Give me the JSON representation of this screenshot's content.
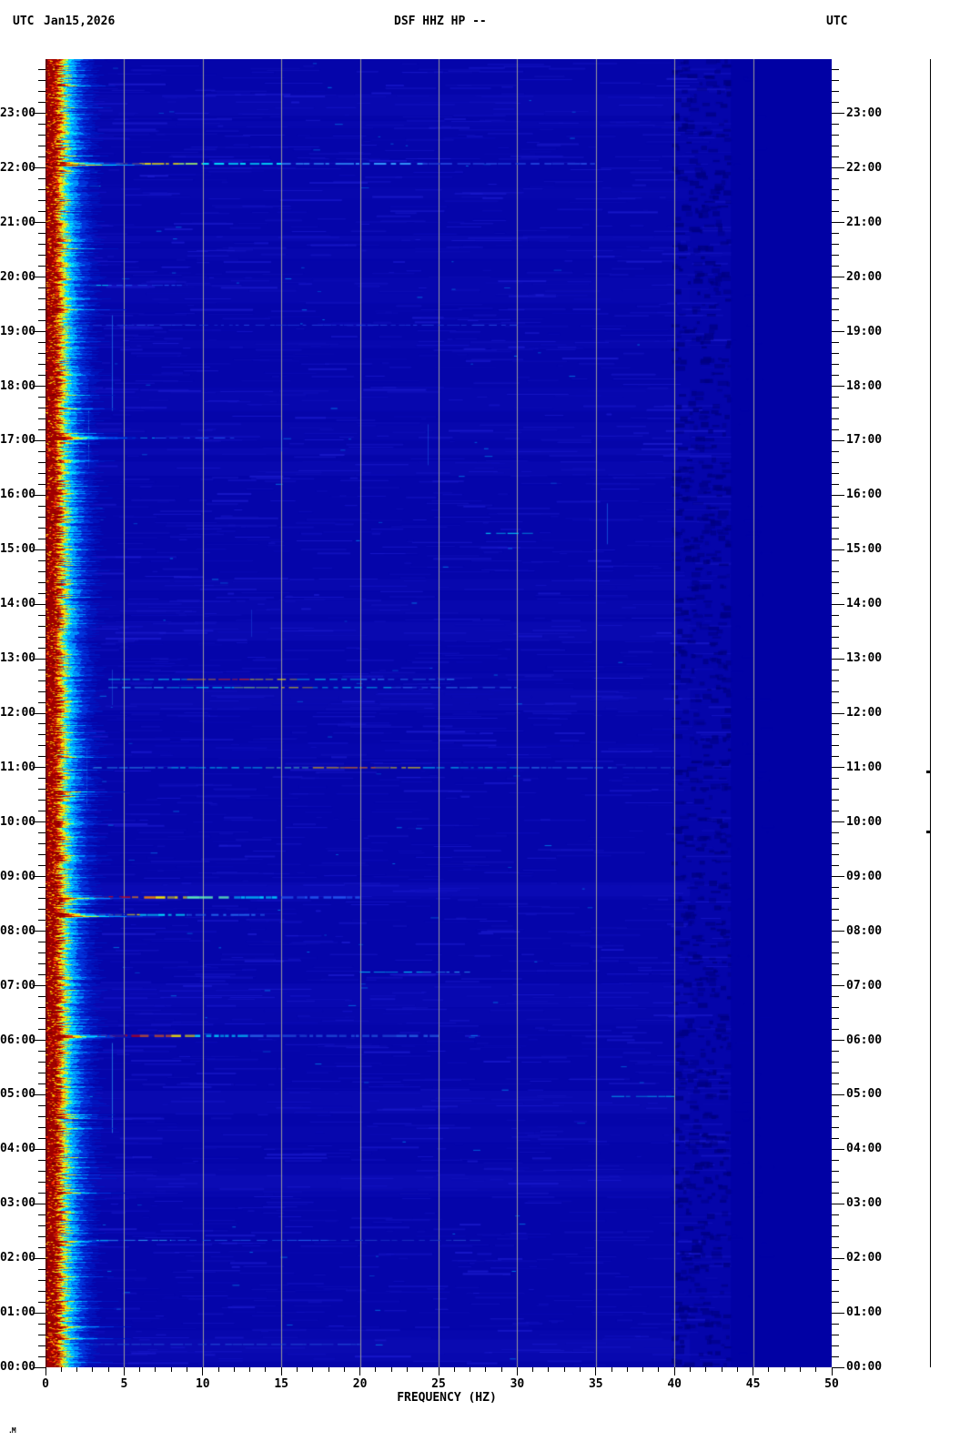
{
  "header": {
    "left_label": "UTC",
    "date": "Jan15,2026",
    "title": "DSF HHZ HP --",
    "right_label": "UTC"
  },
  "corner_mark": ".M",
  "x_axis": {
    "label": "FREQUENCY (HZ)",
    "min_hz": 0,
    "max_hz": 50,
    "major_step_hz": 5,
    "minor_step_hz": 1,
    "major_tick_labels": [
      "0",
      "5",
      "10",
      "15",
      "20",
      "25",
      "30",
      "35",
      "40",
      "45",
      "50"
    ]
  },
  "y_axis": {
    "timezone": "UTC",
    "hours": [
      "00:00",
      "01:00",
      "02:00",
      "03:00",
      "04:00",
      "05:00",
      "06:00",
      "07:00",
      "08:00",
      "09:00",
      "10:00",
      "11:00",
      "12:00",
      "13:00",
      "14:00",
      "15:00",
      "16:00",
      "17:00",
      "18:00",
      "19:00",
      "20:00",
      "21:00",
      "22:00",
      "23:00"
    ],
    "minor_ticks_per_hour": 5,
    "direction": "time increases upward, 00:00 at bottom, 24:00 at top"
  },
  "chart_data": {
    "type": "heatmap",
    "title": "DSF HHZ HP --",
    "subtitle": "24-hour seismic spectrogram, Jan15,2026 UTC",
    "xlabel": "FREQUENCY (HZ)",
    "x_range_hz": [
      0,
      50
    ],
    "y_range_hours": [
      0,
      24
    ],
    "grid": "vertical grey lines every 5 Hz",
    "legend_position": "none",
    "palette": {
      "background": "#0505aa",
      "noise_light": "#1d1dd0",
      "noise_mid": "#1212bc",
      "noise_cyan": "#00aaff",
      "flat_right": "#0101a4",
      "mottle_dark": "#000080",
      "grid": "#9a9a9a",
      "band_peak": "#a00000"
    },
    "left_band": {
      "description": "continuous strong microseism band 0 - ~2.5 Hz for all 24 h: dark red core grading orange-yellow-green-cyan-blue into background",
      "stops": [
        {
          "w": 1.5,
          "color": "#600000"
        },
        {
          "w": 12,
          "color": "#a00000"
        },
        {
          "w": 3,
          "color": "#e83000"
        },
        {
          "w": 4,
          "color": "#ffdd00"
        },
        {
          "w": 3,
          "color": "#a8ff50"
        },
        {
          "w": 5,
          "color": "#00e0ff"
        },
        {
          "w": 7,
          "color": "#0090ff"
        },
        {
          "w": 9,
          "color": "#0040e8"
        },
        {
          "w": 10,
          "color": "#0018c0"
        }
      ],
      "speck_colors": [
        "#ff2a00",
        "#ffcc00",
        "#700000",
        "#ff7700"
      ]
    },
    "events": [
      {
        "time": "22:05",
        "t": 22.08,
        "thickness": 2,
        "band_boost": true,
        "segments": [
          {
            "f0": 0,
            "f1": 2.2,
            "color": "#8b0000"
          },
          {
            "f0": 2.2,
            "f1": 4.5,
            "color": "#d40000"
          },
          {
            "f0": 4.5,
            "f1": 6,
            "color": "#ff8800"
          },
          {
            "f0": 6,
            "f1": 8.5,
            "color": "#ffee00"
          },
          {
            "f0": 8.5,
            "f1": 10,
            "color": "#aaff66"
          },
          {
            "f0": 10,
            "f1": 15,
            "color": "#00e5ff"
          },
          {
            "f0": 15,
            "f1": 24,
            "color": "#3399ff"
          },
          {
            "f0": 24,
            "f1": 35,
            "color": "#2244dd"
          }
        ]
      },
      {
        "time": "21:40",
        "t": 21.67,
        "thickness": 1,
        "segments": [
          {
            "f0": 0,
            "f1": 1.8,
            "color": "#ffee00"
          },
          {
            "f0": 1.8,
            "f1": 3.5,
            "color": "#00e5ff"
          }
        ]
      },
      {
        "time": "19:51",
        "t": 19.85,
        "thickness": 1,
        "segments": [
          {
            "f0": 0,
            "f1": 1.5,
            "color": "#ffee00"
          },
          {
            "f0": 1.5,
            "f1": 4,
            "color": "#00d5ff"
          },
          {
            "f0": 4,
            "f1": 9,
            "color": "#2255ee"
          }
        ]
      },
      {
        "time": "19:07",
        "t": 19.12,
        "thickness": 1,
        "segments": [
          {
            "f0": 0,
            "f1": 1.5,
            "color": "#aaff66"
          },
          {
            "f0": 1.5,
            "f1": 3,
            "color": "#00d5ff"
          },
          {
            "f0": 3,
            "f1": 30,
            "color": "#2244dd"
          }
        ]
      },
      {
        "time": "17:03",
        "t": 17.05,
        "thickness": 1,
        "band_boost": true,
        "segments": [
          {
            "f0": 0,
            "f1": 1.6,
            "color": "#ffcc00"
          },
          {
            "f0": 1.6,
            "f1": 4,
            "color": "#66ffcc"
          },
          {
            "f0": 4,
            "f1": 7,
            "color": "#00bbff"
          },
          {
            "f0": 7,
            "f1": 12,
            "color": "#2255ee"
          }
        ]
      },
      {
        "time": "15:18",
        "t": 15.3,
        "thickness": 1,
        "segments": [
          {
            "f0": 28,
            "f1": 31,
            "color": "#00e5ff"
          }
        ]
      },
      {
        "time": "12:37",
        "t": 12.62,
        "thickness": 1,
        "segments": [
          {
            "f0": 4,
            "f1": 9,
            "color": "#00e5ff"
          },
          {
            "f0": 9,
            "f1": 11,
            "color": "#ffaa00"
          },
          {
            "f0": 11,
            "f1": 13,
            "color": "#ff3300"
          },
          {
            "f0": 13,
            "f1": 16,
            "color": "#ffee00"
          },
          {
            "f0": 16,
            "f1": 20,
            "color": "#00e5ff"
          },
          {
            "f0": 20,
            "f1": 26,
            "color": "#3399ff"
          }
        ]
      },
      {
        "time": "12:28",
        "t": 12.47,
        "thickness": 1,
        "segments": [
          {
            "f0": 4,
            "f1": 8,
            "color": "#33bbff"
          },
          {
            "f0": 8,
            "f1": 12,
            "color": "#00e5ff"
          },
          {
            "f0": 12,
            "f1": 15,
            "color": "#aaff66"
          },
          {
            "f0": 15,
            "f1": 17,
            "color": "#ffee00"
          },
          {
            "f0": 17,
            "f1": 22,
            "color": "#00e5ff"
          },
          {
            "f0": 22,
            "f1": 30,
            "color": "#3377ee"
          }
        ]
      },
      {
        "time": "11:00",
        "t": 11.0,
        "thickness": 1,
        "segments": [
          {
            "f0": 3,
            "f1": 8,
            "color": "#33bbff"
          },
          {
            "f0": 8,
            "f1": 14,
            "color": "#00e5ff"
          },
          {
            "f0": 14,
            "f1": 17,
            "color": "#66ffbb"
          },
          {
            "f0": 17,
            "f1": 19,
            "color": "#ffcc00"
          },
          {
            "f0": 19,
            "f1": 21,
            "color": "#ff8800"
          },
          {
            "f0": 21,
            "f1": 24,
            "color": "#ffee00"
          },
          {
            "f0": 24,
            "f1": 30,
            "color": "#00e5ff"
          },
          {
            "f0": 30,
            "f1": 36,
            "color": "#3399ff"
          },
          {
            "f0": 36,
            "f1": 40,
            "color": "#2255dd"
          }
        ]
      },
      {
        "time": "08:37",
        "t": 8.62,
        "thickness": 2.5,
        "band_boost": true,
        "segments": [
          {
            "f0": 0,
            "f1": 3,
            "color": "#8b0000"
          },
          {
            "f0": 3,
            "f1": 5.5,
            "color": "#e00000"
          },
          {
            "f0": 5.5,
            "f1": 7,
            "color": "#ff8800"
          },
          {
            "f0": 7,
            "f1": 9,
            "color": "#ffee00"
          },
          {
            "f0": 9,
            "f1": 12,
            "color": "#66ffbb"
          },
          {
            "f0": 12,
            "f1": 15,
            "color": "#00ccff"
          },
          {
            "f0": 15,
            "f1": 20,
            "color": "#2255ee"
          }
        ]
      },
      {
        "time": "08:18",
        "t": 8.3,
        "thickness": 2,
        "band_boost": true,
        "segments": [
          {
            "f0": 0,
            "f1": 2,
            "color": "#cc2200"
          },
          {
            "f0": 2,
            "f1": 4,
            "color": "#ff9900"
          },
          {
            "f0": 4,
            "f1": 6,
            "color": "#ffee00"
          },
          {
            "f0": 6,
            "f1": 9,
            "color": "#00e5ff"
          },
          {
            "f0": 9,
            "f1": 14,
            "color": "#2266ee"
          }
        ]
      },
      {
        "time": "07:15",
        "t": 7.25,
        "thickness": 1,
        "segments": [
          {
            "f0": 20,
            "f1": 24,
            "color": "#00ccff"
          },
          {
            "f0": 24,
            "f1": 27,
            "color": "#33aaff"
          }
        ]
      },
      {
        "time": "06:05",
        "t": 6.08,
        "thickness": 2.5,
        "band_boost": true,
        "segments": [
          {
            "f0": 0,
            "f1": 3.5,
            "color": "#8b0000"
          },
          {
            "f0": 3.5,
            "f1": 6,
            "color": "#cc0000"
          },
          {
            "f0": 6,
            "f1": 8,
            "color": "#ff6600"
          },
          {
            "f0": 8,
            "f1": 9.5,
            "color": "#ffee00"
          },
          {
            "f0": 9.5,
            "f1": 13,
            "color": "#00ccff"
          },
          {
            "f0": 13,
            "f1": 25,
            "color": "#2255dd"
          }
        ]
      },
      {
        "time": "04:58",
        "t": 4.97,
        "thickness": 1,
        "segments": [
          {
            "f0": 0,
            "f1": 1.5,
            "color": "#ffee00"
          },
          {
            "f0": 1.5,
            "f1": 3,
            "color": "#00ccff"
          },
          {
            "f0": 36,
            "f1": 40,
            "color": "#00ccff"
          }
        ]
      },
      {
        "time": "02:20",
        "t": 2.33,
        "thickness": 1,
        "segments": [
          {
            "f0": 1,
            "f1": 4,
            "color": "#00e5ff"
          },
          {
            "f0": 4,
            "f1": 8,
            "color": "#33bbff"
          },
          {
            "f0": 8,
            "f1": 18,
            "color": "#2266ee"
          },
          {
            "f0": 18,
            "f1": 28,
            "color": "#2244cc"
          }
        ]
      },
      {
        "time": "00:25",
        "t": 0.42,
        "thickness": 1,
        "segments": [
          {
            "f0": 0,
            "f1": 1.5,
            "color": "#ffcc00"
          },
          {
            "f0": 1.5,
            "f1": 3,
            "color": "#00ccff"
          },
          {
            "f0": 3,
            "f1": 20,
            "color": "#2255dd"
          }
        ]
      }
    ],
    "vertical_artifacts": [
      {
        "f": 4.2,
        "t0": 17.55,
        "t1": 19.3,
        "color": "#2299ff",
        "alpha": 0.55
      },
      {
        "f": 2.7,
        "t0": 16.5,
        "t1": 17.55,
        "color": "#33ccff",
        "alpha": 0.6
      },
      {
        "f": 15.0,
        "t0": 16.8,
        "t1": 17.2,
        "color": "#2277ff",
        "alpha": 0.5
      },
      {
        "f": 24.3,
        "t0": 16.55,
        "t1": 17.3,
        "color": "#2266ee",
        "alpha": 0.45
      },
      {
        "f": 35.7,
        "t0": 15.1,
        "t1": 15.85,
        "color": "#2288ff",
        "alpha": 0.5
      },
      {
        "f": 4.2,
        "t0": 4.3,
        "t1": 5.95,
        "color": "#33bbff",
        "alpha": 0.55
      },
      {
        "f": 2.6,
        "t0": 10.3,
        "t1": 11.35,
        "color": "#33bbff",
        "alpha": 0.5
      },
      {
        "f": 4.2,
        "t0": 12.15,
        "t1": 12.8,
        "color": "#2277ee",
        "alpha": 0.4
      },
      {
        "f": 13.1,
        "t0": 13.4,
        "t1": 13.9,
        "color": "#2266ee",
        "alpha": 0.35
      }
    ],
    "texture": {
      "noise_dashes": 2600,
      "cyan_specks": 150,
      "broad_light_bands": 28,
      "mottle_range_hz": [
        39.8,
        43.4
      ],
      "flat_range_hz": [
        43.6,
        50
      ]
    }
  },
  "right_scale": {
    "description": "thin vertical reference line in right margin with two small marks",
    "marks_y": [
      847,
      913
    ]
  }
}
